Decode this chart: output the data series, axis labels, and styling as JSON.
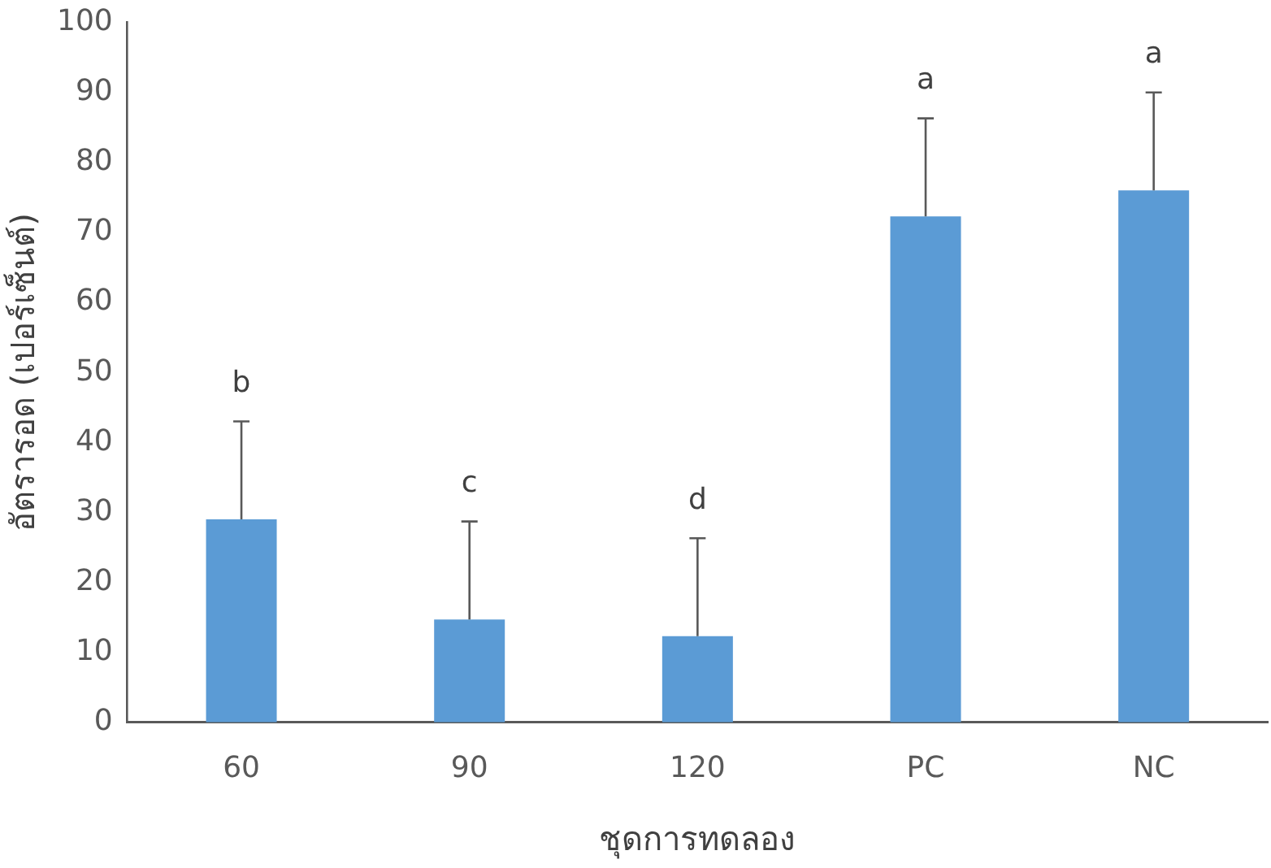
{
  "chart_data": {
    "type": "bar",
    "xlabel": "ชุดการทดลอง",
    "ylabel": "อัตรารอด (เปอร์เซ็นต์)",
    "categories": [
      "60",
      "90",
      "120",
      "PC",
      "NC"
    ],
    "values": [
      29,
      14.7,
      12.3,
      72.3,
      76
    ],
    "errors": [
      [
        29,
        43
      ],
      [
        14.7,
        28.7
      ],
      [
        12.3,
        26.3
      ],
      [
        72.3,
        86.3
      ],
      [
        76,
        90
      ]
    ],
    "color": "#5b9bd5",
    "ylim": [
      0,
      100
    ],
    "yticks": [
      0,
      10,
      20,
      30,
      40,
      50,
      60,
      70,
      80,
      90,
      100
    ],
    "grid": false,
    "legend": false,
    "annotations": [
      "b",
      "c",
      "d",
      "a",
      "a"
    ]
  }
}
